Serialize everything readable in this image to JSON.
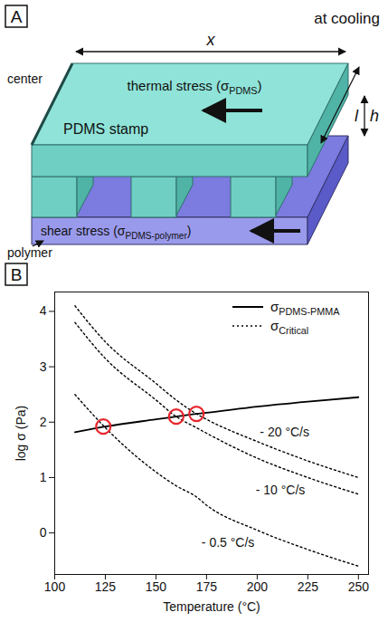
{
  "diagram": {
    "panel": "A",
    "caption": "at cooling",
    "labels": {
      "x": "x",
      "l": "l",
      "h": "h",
      "center": "center",
      "stamp": "PDMS stamp",
      "polymer": "polymer"
    },
    "thermal_stress": {
      "text": "thermal stress (σ",
      "sub": "PDMS",
      "tail": ")"
    },
    "shear_stress": {
      "text": "shear stress (σ",
      "sub": "PDMS-polymer",
      "tail": ")"
    }
  },
  "chart_data": {
    "panel": "B",
    "type": "line",
    "x_label": "Temperature (°C)",
    "y_label": "log σ (Pa)",
    "x": [
      110,
      125,
      150,
      160,
      170,
      175,
      200,
      225,
      250
    ],
    "xlim": [
      100,
      255
    ],
    "xticks": [
      100,
      125,
      150,
      175,
      200,
      225,
      250
    ],
    "ylim": [
      -0.75,
      4.35
    ],
    "yticks": [
      0,
      1,
      2,
      3,
      4
    ],
    "legend": "top-right",
    "series": [
      {
        "name": "σPDMS-PMMA",
        "color": "#000000",
        "line_style": "solid",
        "values": [
          1.82,
          1.92,
          2.05,
          2.1,
          2.15,
          2.17,
          2.28,
          2.37,
          2.45
        ]
      },
      {
        "name": "σCritical",
        "label": "- 20 °C/s",
        "color": "#000000",
        "line_style": "dotted",
        "values": [
          4.1,
          3.45,
          2.7,
          2.4,
          2.15,
          2.05,
          1.65,
          1.3,
          1.0
        ]
      },
      {
        "name": "σCritical",
        "label": "- 10 °C/s",
        "color": "#000000",
        "line_style": "dotted",
        "values": [
          3.8,
          3.15,
          2.4,
          2.1,
          1.9,
          1.8,
          1.35,
          1.0,
          0.7
        ]
      },
      {
        "name": "σCritical",
        "label": "- 0.5 °C/s",
        "color": "#000000",
        "line_style": "dotted",
        "values": [
          2.5,
          1.9,
          1.1,
          0.85,
          0.65,
          0.5,
          0.05,
          -0.3,
          -0.6
        ]
      }
    ],
    "highlights": {
      "x": [
        124,
        160,
        170
      ],
      "y": [
        1.92,
        2.1,
        2.15
      ],
      "color": "#e8262d"
    }
  }
}
